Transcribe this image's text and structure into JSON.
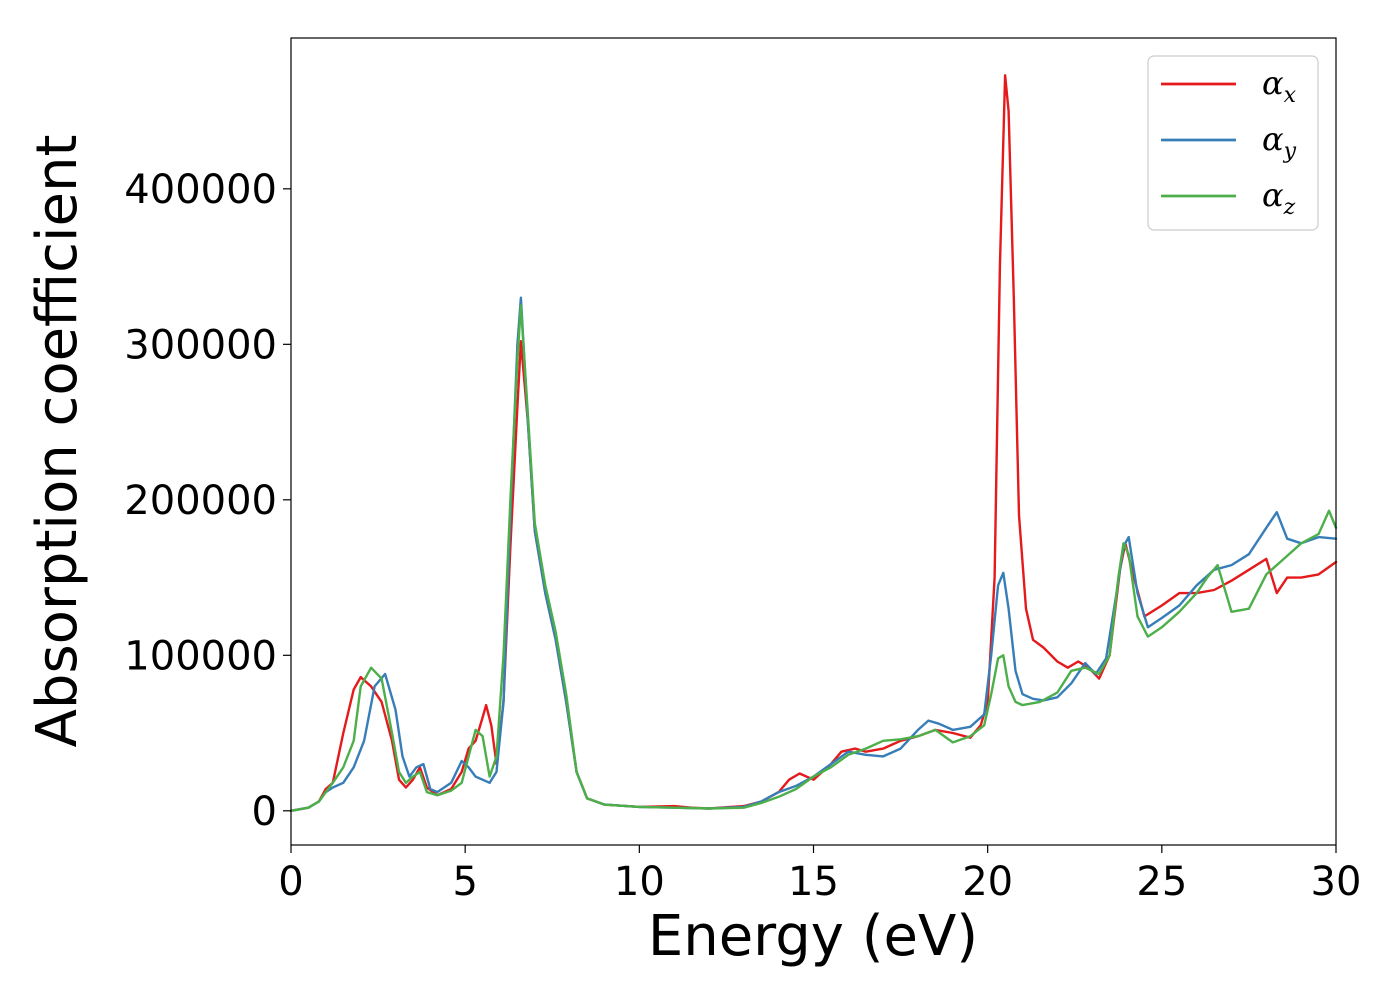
{
  "chart_data": {
    "type": "line",
    "xlabel": "Energy (eV)",
    "ylabel": "Absorption coefficient",
    "xlim": [
      0,
      30
    ],
    "ylim": [
      -22000,
      497000
    ],
    "xticks": [
      0,
      5,
      10,
      15,
      20,
      25,
      30
    ],
    "xtick_labels": [
      "0",
      "5",
      "10",
      "15",
      "20",
      "25",
      "30"
    ],
    "yticks": [
      0,
      100000,
      200000,
      300000,
      400000
    ],
    "ytick_labels": [
      "0",
      "100000",
      "200000",
      "300000",
      "400000"
    ],
    "grid": false,
    "legend": "top-right",
    "series": [
      {
        "name": "α",
        "subscript": "x",
        "color": "#e41a1c",
        "x": [
          0,
          0.5,
          0.8,
          1.0,
          1.2,
          1.5,
          1.8,
          2.0,
          2.3,
          2.6,
          2.9,
          3.1,
          3.3,
          3.5,
          3.7,
          3.9,
          4.2,
          4.6,
          4.9,
          5.1,
          5.3,
          5.5,
          5.6,
          5.75,
          5.9,
          6.1,
          6.3,
          6.5,
          6.6,
          6.8,
          7.0,
          7.3,
          7.6,
          7.9,
          8.2,
          8.5,
          9.0,
          10,
          11,
          11.5,
          12,
          13,
          13.5,
          14,
          14.3,
          14.6,
          15,
          15.5,
          15.8,
          16.2,
          16.5,
          17,
          17.5,
          18,
          18.5,
          19,
          19.5,
          19.8,
          20.0,
          20.2,
          20.35,
          20.5,
          20.6,
          20.75,
          20.9,
          21.1,
          21.3,
          21.6,
          22,
          22.3,
          22.6,
          22.9,
          23.2,
          23.5,
          23.8,
          23.95,
          24.2,
          24.5,
          25,
          25.5,
          26,
          26.5,
          27,
          27.5,
          28,
          28.3,
          28.6,
          29,
          29.5,
          30
        ],
        "y": [
          0,
          2000,
          6000,
          14000,
          18000,
          50000,
          78000,
          86000,
          80000,
          70000,
          45000,
          20000,
          15000,
          20000,
          28000,
          15000,
          10000,
          14000,
          25000,
          40000,
          45000,
          60000,
          68000,
          55000,
          30000,
          70000,
          170000,
          260000,
          302000,
          250000,
          180000,
          140000,
          110000,
          70000,
          25000,
          8000,
          4000,
          2500,
          3000,
          2000,
          1500,
          3000,
          6000,
          12000,
          20000,
          24000,
          20000,
          30000,
          38000,
          40000,
          38000,
          40000,
          45000,
          48000,
          52000,
          50000,
          47000,
          55000,
          70000,
          150000,
          350000,
          473000,
          450000,
          330000,
          190000,
          130000,
          110000,
          105000,
          96000,
          92000,
          96000,
          92000,
          85000,
          100000,
          155000,
          172000,
          150000,
          125000,
          132000,
          140000,
          140000,
          142000,
          148000,
          155000,
          162000,
          140000,
          150000,
          150000,
          152000,
          160000
        ]
      },
      {
        "name": "α",
        "subscript": "y",
        "color": "#377eb8",
        "x": [
          0,
          0.5,
          0.8,
          1.0,
          1.2,
          1.5,
          1.8,
          2.1,
          2.4,
          2.7,
          3.0,
          3.2,
          3.4,
          3.6,
          3.8,
          4.0,
          4.2,
          4.6,
          4.9,
          5.1,
          5.3,
          5.5,
          5.7,
          5.9,
          6.1,
          6.3,
          6.5,
          6.6,
          6.8,
          7.0,
          7.3,
          7.6,
          7.9,
          8.2,
          8.5,
          9.0,
          10,
          11,
          12,
          13,
          13.5,
          14,
          14.5,
          15,
          15.5,
          16,
          16.5,
          17,
          17.5,
          18,
          18.3,
          18.6,
          19,
          19.5,
          19.9,
          20.1,
          20.3,
          20.45,
          20.6,
          20.8,
          21.0,
          21.3,
          21.6,
          22,
          22.4,
          22.8,
          23.1,
          23.4,
          23.7,
          23.9,
          24.05,
          24.3,
          24.6,
          25,
          25.5,
          26,
          26.5,
          27,
          27.5,
          28,
          28.3,
          28.6,
          29,
          29.5,
          30
        ],
        "y": [
          0,
          2000,
          6000,
          12000,
          15000,
          18000,
          28000,
          45000,
          80000,
          88000,
          65000,
          35000,
          22000,
          28000,
          30000,
          14000,
          12000,
          18000,
          32000,
          28000,
          22000,
          20000,
          18000,
          25000,
          70000,
          190000,
          300000,
          330000,
          250000,
          180000,
          140000,
          110000,
          70000,
          25000,
          8000,
          4000,
          2500,
          2000,
          1500,
          2500,
          6000,
          12000,
          16000,
          22000,
          30000,
          38000,
          36000,
          35000,
          40000,
          52000,
          58000,
          56000,
          52000,
          54000,
          62000,
          100000,
          145000,
          153000,
          130000,
          90000,
          75000,
          72000,
          71000,
          73000,
          82000,
          95000,
          88000,
          98000,
          140000,
          170000,
          176000,
          140000,
          118000,
          124000,
          132000,
          145000,
          155000,
          158000,
          165000,
          182000,
          192000,
          175000,
          172000,
          176000,
          175000
        ]
      },
      {
        "name": "α",
        "subscript": "z",
        "color": "#4daf4a",
        "x": [
          0,
          0.5,
          0.8,
          1.0,
          1.2,
          1.5,
          1.8,
          2.0,
          2.3,
          2.6,
          2.9,
          3.1,
          3.3,
          3.5,
          3.7,
          3.9,
          4.2,
          4.6,
          4.9,
          5.1,
          5.3,
          5.5,
          5.7,
          5.9,
          6.1,
          6.3,
          6.5,
          6.6,
          6.8,
          7.0,
          7.3,
          7.6,
          7.9,
          8.2,
          8.5,
          9.0,
          10,
          11,
          12,
          13,
          13.5,
          14,
          14.5,
          15,
          15.5,
          16,
          16.5,
          17,
          17.5,
          18,
          18.5,
          19,
          19.5,
          19.9,
          20.1,
          20.3,
          20.45,
          20.6,
          20.8,
          21.0,
          21.5,
          22,
          22.4,
          22.8,
          23.2,
          23.5,
          23.75,
          23.9,
          24.05,
          24.3,
          24.6,
          25,
          25.5,
          26,
          26.3,
          26.6,
          27,
          27.5,
          28,
          28.5,
          29,
          29.5,
          29.8,
          30
        ],
        "y": [
          0,
          2000,
          6000,
          12000,
          18000,
          28000,
          45000,
          80000,
          92000,
          85000,
          50000,
          25000,
          18000,
          22000,
          25000,
          12000,
          10000,
          13000,
          18000,
          35000,
          52000,
          48000,
          22000,
          35000,
          100000,
          200000,
          290000,
          325000,
          255000,
          185000,
          145000,
          115000,
          75000,
          25000,
          8000,
          4000,
          2500,
          2000,
          1500,
          2000,
          5000,
          9000,
          14000,
          22000,
          28000,
          36000,
          40000,
          45000,
          46000,
          48000,
          52000,
          44000,
          48000,
          55000,
          75000,
          98000,
          100000,
          80000,
          70000,
          68000,
          70000,
          76000,
          90000,
          92000,
          88000,
          100000,
          150000,
          172000,
          165000,
          125000,
          112000,
          118000,
          128000,
          140000,
          150000,
          158000,
          128000,
          130000,
          152000,
          162000,
          172000,
          178000,
          193000,
          182000
        ]
      }
    ]
  }
}
